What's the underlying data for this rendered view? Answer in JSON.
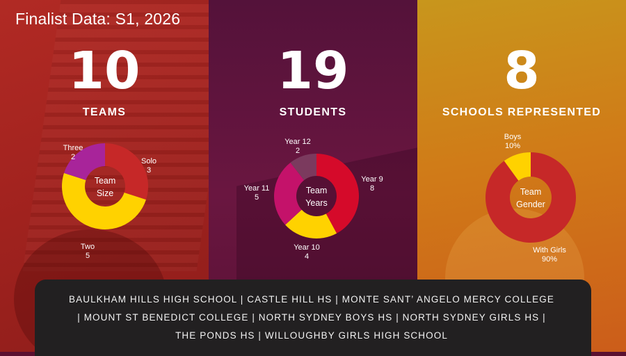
{
  "title": "Finalist Data: S1, 2026",
  "stats": [
    {
      "value": "10",
      "label": "TEAMS"
    },
    {
      "value": "19",
      "label": "STUDENTS"
    },
    {
      "value": "8",
      "label": "SCHOOLS REPRESENTED"
    }
  ],
  "chart_data": [
    {
      "type": "pie",
      "center_label": [
        "Team",
        "Size"
      ],
      "slices": [
        {
          "name": "Solo",
          "value": 3,
          "display": "3",
          "color": "#c62828"
        },
        {
          "name": "Two",
          "value": 5,
          "display": "5",
          "color": "#ffd200"
        },
        {
          "name": "Three",
          "value": 2,
          "display": "2",
          "color": "#a8249a"
        }
      ]
    },
    {
      "type": "pie",
      "center_label": [
        "Team",
        "Years"
      ],
      "slices": [
        {
          "name": "Year 9",
          "value": 8,
          "display": "8",
          "color": "#d50a2a"
        },
        {
          "name": "Year 10",
          "value": 4,
          "display": "4",
          "color": "#ffd200"
        },
        {
          "name": "Year 11",
          "value": 5,
          "display": "5",
          "color": "#c4126a"
        },
        {
          "name": "Year 12",
          "value": 2,
          "display": "2",
          "color": "#7b3a5e"
        }
      ]
    },
    {
      "type": "pie",
      "center_label": [
        "Team",
        "Gender"
      ],
      "slices": [
        {
          "name": "With Girls",
          "value": 90,
          "display": "90%",
          "color": "#c62828"
        },
        {
          "name": "Boys",
          "value": 10,
          "display": "10%",
          "color": "#ffd200"
        }
      ]
    }
  ],
  "schools_text": "BAULKHAM HILLS HIGH SCHOOL | CASTLE HILL HS | MONTE SANT’ ANGELO MERCY COLLEGE | MOUNT ST BENEDICT COLLEGE | NORTH SYDNEY BOYS HS | NORTH SYDNEY GIRLS HS | THE PONDS HS | WILLOUGHBY GIRLS HIGH SCHOOL"
}
